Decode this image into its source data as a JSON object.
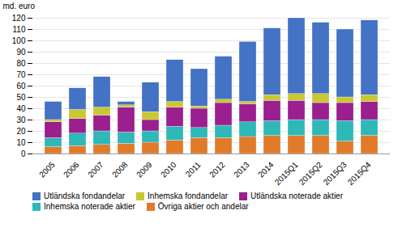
{
  "chart_data": {
    "type": "bar",
    "stacked": true,
    "ylabel": "md. euro",
    "categories": [
      "2005",
      "2006",
      "2007",
      "2008",
      "2009",
      "2010",
      "2011",
      "2012",
      "2013",
      "2014",
      "2015Q1",
      "2015Q2",
      "2015Q3",
      "2015Q4"
    ],
    "series": [
      {
        "name": "Övriga aktier och andelar",
        "color": "#e07b2a",
        "values": [
          6,
          7,
          8,
          9,
          10,
          12,
          14,
          14,
          15,
          16,
          16,
          16,
          11,
          16
        ]
      },
      {
        "name": "Inhemska noterade aktier",
        "color": "#2eb8b8",
        "values": [
          8,
          11,
          12,
          10,
          10,
          12,
          9,
          11,
          13,
          13,
          14,
          14,
          18,
          14
        ]
      },
      {
        "name": "Utländska noterade aktier",
        "color": "#9b1f8e",
        "values": [
          14,
          13,
          14,
          22,
          10,
          17,
          17,
          20,
          16,
          18,
          17,
          15,
          16,
          16
        ]
      },
      {
        "name": "Inhemska fondandelar",
        "color": "#c8c832",
        "values": [
          2,
          8,
          7,
          2,
          7,
          5,
          2,
          3,
          2,
          5,
          6,
          8,
          5,
          6
        ]
      },
      {
        "name": "Utländska fondandelar",
        "color": "#4472c4",
        "values": [
          16,
          19,
          27,
          3,
          26,
          37,
          33,
          38,
          53,
          59,
          67,
          63,
          60,
          66
        ]
      }
    ],
    "ylim": [
      0,
      120
    ],
    "yticks": [
      0,
      10,
      20,
      30,
      40,
      50,
      60,
      70,
      80,
      90,
      100,
      110,
      120
    ],
    "grid": true,
    "legend": "bottom"
  }
}
